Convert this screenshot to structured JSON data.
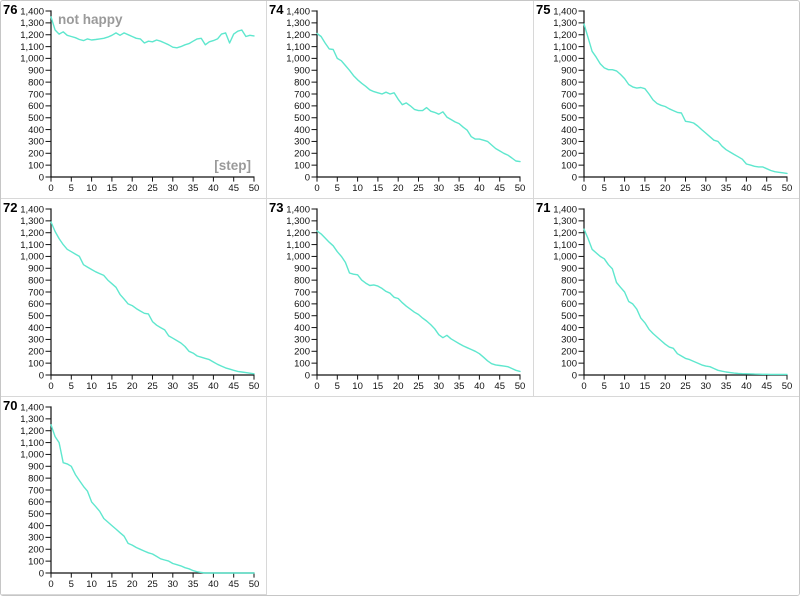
{
  "window": {
    "background": "#ffffff",
    "border_color": "#c6c6c6",
    "panel_border_color": "#d8d8d8",
    "grid": {
      "columns": 3,
      "rows": 3,
      "panel_order": [
        "76",
        "74",
        "75",
        "72",
        "73",
        "71",
        "70"
      ],
      "empty_cells": 2
    }
  },
  "colors": {
    "line": "#5fe7ce",
    "axis": "#111111",
    "tick_label": "#111111",
    "muted_label": "#9a9a9a",
    "chart_number": "#000000"
  },
  "axes": {
    "xlim": [
      0,
      50
    ],
    "ylim": [
      0,
      1400
    ],
    "grid_lines": false,
    "x_ticks": [
      0,
      5,
      10,
      15,
      20,
      25,
      30,
      35,
      40,
      45,
      50
    ],
    "x_tick_labels": [
      "0",
      "5",
      "10",
      "15",
      "20",
      "25",
      "30",
      "35",
      "40",
      "45",
      "50"
    ],
    "y_ticks": [
      0,
      100,
      200,
      300,
      400,
      500,
      600,
      700,
      800,
      900,
      1000,
      1100,
      1200,
      1300,
      1400
    ],
    "y_tick_labels": [
      "0",
      "100",
      "200",
      "300",
      "400",
      "500",
      "600",
      "700",
      "800",
      "900",
      "1,000",
      "1,100",
      "1,200",
      "1,300",
      "1,400"
    ]
  },
  "chart_data": [
    {
      "type": "line",
      "id": "76",
      "title": "not happy",
      "xlabel": "[step]",
      "x_step": 1,
      "values": [
        1350,
        1240,
        1205,
        1225,
        1195,
        1185,
        1175,
        1160,
        1150,
        1165,
        1155,
        1160,
        1165,
        1170,
        1180,
        1195,
        1215,
        1195,
        1215,
        1200,
        1185,
        1170,
        1165,
        1130,
        1145,
        1140,
        1155,
        1145,
        1130,
        1115,
        1095,
        1090,
        1100,
        1115,
        1125,
        1145,
        1165,
        1170,
        1115,
        1140,
        1150,
        1165,
        1205,
        1215,
        1130,
        1205,
        1230,
        1240,
        1185,
        1195,
        1190
      ]
    },
    {
      "type": "line",
      "id": "74",
      "x_step": 1,
      "values": [
        1210,
        1185,
        1130,
        1080,
        1075,
        1000,
        980,
        940,
        900,
        855,
        820,
        790,
        765,
        735,
        720,
        710,
        700,
        715,
        700,
        710,
        655,
        610,
        625,
        600,
        570,
        560,
        560,
        585,
        555,
        545,
        530,
        550,
        505,
        485,
        465,
        450,
        420,
        395,
        340,
        320,
        320,
        310,
        300,
        270,
        240,
        220,
        200,
        185,
        160,
        135,
        130
      ]
    },
    {
      "type": "line",
      "id": "75",
      "x_step": 1,
      "values": [
        1290,
        1175,
        1060,
        1010,
        955,
        920,
        905,
        905,
        895,
        865,
        830,
        780,
        760,
        750,
        755,
        745,
        700,
        650,
        620,
        605,
        595,
        575,
        560,
        545,
        540,
        470,
        465,
        455,
        430,
        400,
        370,
        340,
        310,
        300,
        260,
        230,
        210,
        190,
        170,
        150,
        110,
        100,
        90,
        85,
        85,
        70,
        55,
        45,
        40,
        35,
        30
      ]
    },
    {
      "type": "line",
      "id": "72",
      "x_step": 1,
      "values": [
        1290,
        1210,
        1150,
        1100,
        1060,
        1040,
        1020,
        1000,
        930,
        910,
        890,
        870,
        855,
        840,
        800,
        770,
        740,
        680,
        640,
        600,
        585,
        560,
        540,
        520,
        515,
        450,
        420,
        400,
        380,
        330,
        310,
        290,
        270,
        240,
        200,
        185,
        160,
        150,
        140,
        130,
        110,
        90,
        75,
        60,
        50,
        40,
        30,
        25,
        20,
        15,
        10
      ]
    },
    {
      "type": "line",
      "id": "73",
      "x_step": 1,
      "values": [
        1215,
        1190,
        1155,
        1120,
        1090,
        1040,
        1000,
        950,
        860,
        850,
        845,
        800,
        775,
        755,
        760,
        750,
        730,
        705,
        690,
        655,
        645,
        610,
        580,
        555,
        530,
        510,
        480,
        455,
        425,
        390,
        340,
        315,
        335,
        305,
        285,
        265,
        245,
        230,
        215,
        200,
        180,
        150,
        120,
        95,
        85,
        80,
        75,
        70,
        55,
        40,
        30
      ]
    },
    {
      "type": "line",
      "id": "71",
      "x_step": 1,
      "values": [
        1230,
        1150,
        1060,
        1030,
        1000,
        980,
        930,
        895,
        780,
        740,
        700,
        620,
        600,
        555,
        480,
        440,
        385,
        350,
        320,
        290,
        260,
        235,
        225,
        180,
        160,
        140,
        130,
        115,
        100,
        85,
        75,
        70,
        55,
        40,
        32,
        25,
        20,
        16,
        13,
        11,
        10,
        9,
        8,
        7,
        6,
        6,
        5,
        5,
        5,
        5,
        5
      ]
    },
    {
      "type": "line",
      "id": "70",
      "x_step": 1,
      "values": [
        1250,
        1150,
        1100,
        930,
        920,
        900,
        830,
        780,
        730,
        690,
        600,
        560,
        520,
        460,
        430,
        400,
        370,
        340,
        310,
        250,
        235,
        215,
        200,
        185,
        170,
        160,
        140,
        120,
        110,
        100,
        80,
        70,
        60,
        45,
        35,
        20,
        10,
        5,
        0,
        0,
        0,
        0,
        0,
        0,
        0,
        0,
        0,
        0,
        0,
        0,
        0
      ]
    }
  ]
}
